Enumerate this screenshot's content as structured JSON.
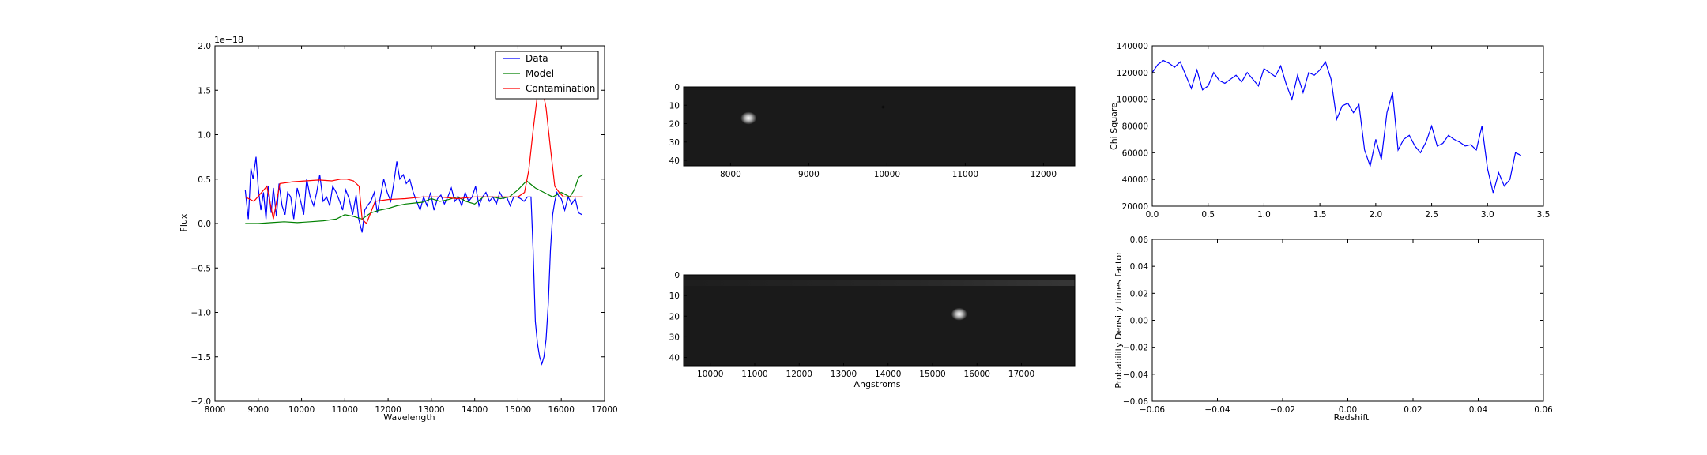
{
  "chart_data": [
    {
      "id": "spectrum",
      "type": "line",
      "xlabel": "Wavelength",
      "ylabel": "Flux",
      "offset_label": "1e−18",
      "xlim": [
        8000,
        17000
      ],
      "ylim": [
        -2.0,
        2.0
      ],
      "xticks": [
        8000,
        9000,
        10000,
        11000,
        12000,
        13000,
        14000,
        15000,
        16000,
        17000
      ],
      "yticks": [
        -2.0,
        -1.5,
        -1.0,
        -0.5,
        0.0,
        0.5,
        1.0,
        1.5,
        2.0
      ],
      "xtick_labels": [
        "8000",
        "9000",
        "10000",
        "11000",
        "12000",
        "13000",
        "14000",
        "15000",
        "16000",
        "17000"
      ],
      "ytick_labels": [
        "−2.0",
        "−1.5",
        "−1.0",
        "−0.5",
        "0.0",
        "0.5",
        "1.0",
        "1.5",
        "2.0"
      ],
      "grid": false,
      "legend": "top-right",
      "series": [
        {
          "name": "Data",
          "color": "#0000ff",
          "x": [
            8700,
            8770,
            8830,
            8880,
            8950,
            9000,
            9060,
            9120,
            9180,
            9230,
            9300,
            9350,
            9420,
            9480,
            9550,
            9620,
            9680,
            9750,
            9820,
            9900,
            9980,
            10050,
            10120,
            10200,
            10280,
            10350,
            10420,
            10500,
            10580,
            10650,
            10720,
            10800,
            10880,
            10950,
            11020,
            11100,
            11180,
            11260,
            11320,
            11400,
            11460,
            11520,
            11600,
            11680,
            11750,
            11820,
            11900,
            11980,
            12060,
            12120,
            12200,
            12270,
            12350,
            12420,
            12500,
            12580,
            12660,
            12740,
            12820,
            12900,
            12980,
            13060,
            13140,
            13220,
            13300,
            13380,
            13460,
            13540,
            13620,
            13700,
            13780,
            13860,
            13940,
            14020,
            14100,
            14180,
            14260,
            14340,
            14420,
            14500,
            14580,
            14660,
            14740,
            14820,
            14900,
            14980,
            15060,
            15140,
            15220,
            15300,
            15350,
            15400,
            15450,
            15500,
            15550,
            15600,
            15650,
            15700,
            15750,
            15800,
            15850,
            15900,
            15950,
            16000,
            16080,
            16160,
            16240,
            16320,
            16400,
            16480
          ],
          "y": [
            0.38,
            0.05,
            0.62,
            0.5,
            0.75,
            0.4,
            0.15,
            0.35,
            0.05,
            0.42,
            0.12,
            0.4,
            0.08,
            0.45,
            0.2,
            0.1,
            0.35,
            0.3,
            0.05,
            0.4,
            0.25,
            0.1,
            0.5,
            0.3,
            0.2,
            0.35,
            0.55,
            0.25,
            0.3,
            0.2,
            0.42,
            0.35,
            0.25,
            0.15,
            0.38,
            0.28,
            0.1,
            0.32,
            0.05,
            -0.1,
            0.15,
            0.2,
            0.25,
            0.35,
            0.12,
            0.3,
            0.5,
            0.35,
            0.25,
            0.42,
            0.7,
            0.5,
            0.55,
            0.45,
            0.5,
            0.35,
            0.25,
            0.15,
            0.3,
            0.2,
            0.35,
            0.15,
            0.28,
            0.32,
            0.22,
            0.3,
            0.4,
            0.25,
            0.3,
            0.2,
            0.35,
            0.25,
            0.3,
            0.42,
            0.2,
            0.3,
            0.35,
            0.25,
            0.3,
            0.22,
            0.35,
            0.28,
            0.3,
            0.2,
            0.3,
            0.3,
            0.28,
            0.25,
            0.3,
            0.3,
            -0.3,
            -1.1,
            -1.35,
            -1.5,
            -1.58,
            -1.5,
            -1.3,
            -0.9,
            -0.3,
            0.1,
            0.25,
            0.35,
            0.3,
            0.28,
            0.15,
            0.3,
            0.22,
            0.28,
            0.12,
            0.1
          ]
        },
        {
          "name": "Model",
          "color": "#008000",
          "x": [
            8700,
            9000,
            9300,
            9600,
            9900,
            10200,
            10500,
            10800,
            11000,
            11200,
            11400,
            11600,
            11800,
            12000,
            12200,
            12400,
            12600,
            12800,
            13000,
            13200,
            13400,
            13600,
            13800,
            14000,
            14200,
            14400,
            14600,
            14800,
            15000,
            15200,
            15400,
            15600,
            15800,
            16000,
            16200,
            16300,
            16400,
            16500
          ],
          "y": [
            0.0,
            0.0,
            0.01,
            0.02,
            0.01,
            0.02,
            0.03,
            0.05,
            0.1,
            0.08,
            0.05,
            0.12,
            0.15,
            0.17,
            0.2,
            0.22,
            0.23,
            0.24,
            0.28,
            0.25,
            0.27,
            0.3,
            0.25,
            0.22,
            0.3,
            0.3,
            0.28,
            0.3,
            0.38,
            0.48,
            0.4,
            0.35,
            0.3,
            0.35,
            0.3,
            0.38,
            0.52,
            0.55
          ]
        },
        {
          "name": "Contamination",
          "color": "#ff0000",
          "x": [
            8700,
            8900,
            9200,
            9350,
            9500,
            9800,
            10100,
            10400,
            10700,
            10900,
            11050,
            11200,
            11330,
            11400,
            11500,
            11700,
            12000,
            12400,
            12800,
            13200,
            13600,
            14000,
            14400,
            14800,
            15000,
            15150,
            15250,
            15350,
            15450,
            15550,
            15650,
            15750,
            15850,
            15950,
            16050,
            16200,
            16500
          ],
          "y": [
            0.3,
            0.25,
            0.42,
            0.05,
            0.45,
            0.47,
            0.48,
            0.49,
            0.48,
            0.5,
            0.5,
            0.48,
            0.42,
            0.05,
            0.0,
            0.25,
            0.27,
            0.28,
            0.3,
            0.3,
            0.28,
            0.3,
            0.3,
            0.3,
            0.3,
            0.35,
            0.6,
            1.05,
            1.45,
            1.55,
            1.3,
            0.85,
            0.42,
            0.35,
            0.3,
            0.3,
            0.3
          ]
        }
      ]
    },
    {
      "id": "image1",
      "type": "heatmap",
      "colormap": "gray",
      "xlim": [
        7400,
        12400
      ],
      "ylim": [
        43,
        0
      ],
      "xticks": [
        8000,
        9000,
        10000,
        11000,
        12000
      ],
      "yticks": [
        0,
        10,
        20,
        30,
        40
      ],
      "xtick_labels": [
        "8000",
        "9000",
        "10000",
        "11000",
        "12000"
      ],
      "ytick_labels": [
        "0",
        "10",
        "20",
        "30",
        "40"
      ],
      "xlabel": "",
      "sources": [
        {
          "x": 8230,
          "y": 17,
          "brightness": 1.0
        },
        {
          "x": 9950,
          "y": 11,
          "brightness": -0.4
        }
      ]
    },
    {
      "id": "image2",
      "type": "heatmap",
      "colormap": "gray",
      "xlim": [
        9400,
        18200
      ],
      "ylim": [
        44,
        0
      ],
      "xticks": [
        10000,
        11000,
        12000,
        13000,
        14000,
        15000,
        16000,
        17000
      ],
      "yticks": [
        0,
        10,
        20,
        30,
        40
      ],
      "xtick_labels": [
        "10000",
        "11000",
        "12000",
        "13000",
        "14000",
        "15000",
        "16000",
        "17000"
      ],
      "ytick_labels": [
        "0",
        "10",
        "20",
        "30",
        "40"
      ],
      "xlabel": "Angstroms",
      "sources": [
        {
          "x": 15600,
          "y": 19,
          "brightness": 1.0
        }
      ]
    },
    {
      "id": "chisq",
      "type": "line",
      "xlabel": "",
      "ylabel": "Chi Square",
      "xlim": [
        0.0,
        3.5
      ],
      "ylim": [
        20000,
        140000
      ],
      "xticks": [
        0.0,
        0.5,
        1.0,
        1.5,
        2.0,
        2.5,
        3.0,
        3.5
      ],
      "yticks": [
        20000,
        40000,
        60000,
        80000,
        100000,
        120000,
        140000
      ],
      "xtick_labels": [
        "0.0",
        "0.5",
        "1.0",
        "1.5",
        "2.0",
        "2.5",
        "3.0",
        "3.5"
      ],
      "ytick_labels": [
        "20000",
        "40000",
        "60000",
        "80000",
        "100000",
        "120000",
        "140000"
      ],
      "grid": false,
      "series": [
        {
          "color": "#0000ff",
          "x": [
            0.0,
            0.05,
            0.1,
            0.15,
            0.2,
            0.25,
            0.3,
            0.35,
            0.4,
            0.45,
            0.5,
            0.55,
            0.6,
            0.65,
            0.7,
            0.75,
            0.8,
            0.85,
            0.9,
            0.95,
            1.0,
            1.05,
            1.1,
            1.15,
            1.2,
            1.25,
            1.3,
            1.35,
            1.4,
            1.45,
            1.5,
            1.55,
            1.6,
            1.65,
            1.7,
            1.75,
            1.8,
            1.85,
            1.9,
            1.95,
            2.0,
            2.05,
            2.1,
            2.15,
            2.2,
            2.25,
            2.3,
            2.35,
            2.4,
            2.45,
            2.5,
            2.55,
            2.6,
            2.65,
            2.7,
            2.75,
            2.8,
            2.85,
            2.9,
            2.95,
            3.0,
            3.05,
            3.1,
            3.15,
            3.2,
            3.25,
            3.3
          ],
          "y": [
            120000,
            126000,
            129000,
            127000,
            124000,
            128000,
            118000,
            108000,
            122000,
            107000,
            110000,
            120000,
            114000,
            112000,
            115000,
            118000,
            113000,
            120000,
            115000,
            110000,
            123000,
            120000,
            117000,
            125000,
            111000,
            100000,
            118000,
            105000,
            120000,
            118000,
            122000,
            128000,
            115000,
            85000,
            95000,
            97000,
            90000,
            96000,
            62000,
            50000,
            70000,
            55000,
            90000,
            105000,
            62000,
            70000,
            73000,
            65000,
            60000,
            68000,
            80000,
            65000,
            67000,
            73000,
            70000,
            68000,
            65000,
            66000,
            62000,
            80000,
            48000,
            30000,
            45000,
            35000,
            40000,
            60000,
            58000
          ]
        }
      ]
    },
    {
      "id": "pdf",
      "type": "line",
      "xlabel": "Redshift",
      "ylabel": "Probability Density times factor",
      "xlim": [
        -0.06,
        0.06
      ],
      "ylim": [
        -0.06,
        0.06
      ],
      "xticks": [
        -0.06,
        -0.04,
        -0.02,
        0.0,
        0.02,
        0.04,
        0.06
      ],
      "yticks": [
        -0.06,
        -0.04,
        -0.02,
        0.0,
        0.02,
        0.04,
        0.06
      ],
      "xtick_labels": [
        "−0.06",
        "−0.04",
        "−0.02",
        "0.00",
        "0.02",
        "0.04",
        "0.06"
      ],
      "ytick_labels": [
        "−0.06",
        "−0.04",
        "−0.02",
        "0.00",
        "0.02",
        "0.04",
        "0.06"
      ],
      "grid": false,
      "series": []
    }
  ]
}
